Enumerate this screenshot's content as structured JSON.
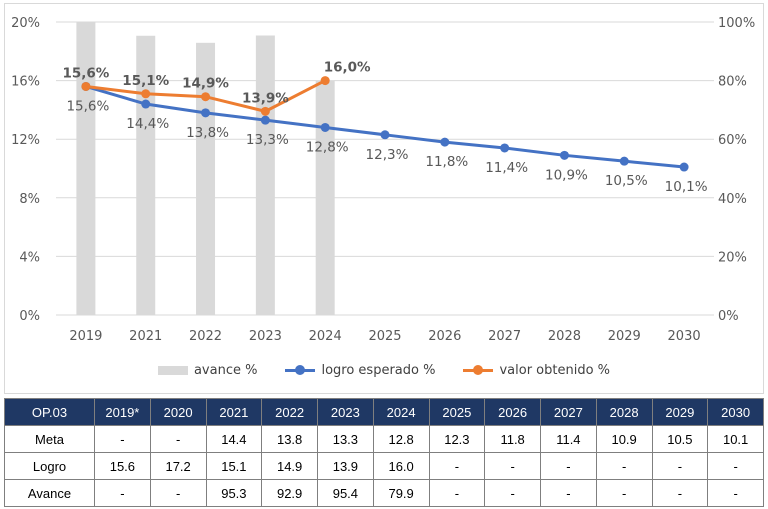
{
  "colors": {
    "bar": "#d9d9d9",
    "expected": "#4472c4",
    "obtained": "#ed7d31",
    "header_bg": "#1f3864",
    "grid": "#d9d9d9",
    "text": "#595959"
  },
  "chart_data": {
    "type": "bar+line",
    "categories": [
      "2019",
      "2021",
      "2022",
      "2023",
      "2024",
      "2025",
      "2026",
      "2027",
      "2028",
      "2029",
      "2030"
    ],
    "y_left": {
      "min": 0,
      "max": 20,
      "ticks": [
        "0%",
        "4%",
        "8%",
        "12%",
        "16%",
        "20%"
      ]
    },
    "y_right": {
      "min": 0,
      "max": 100,
      "ticks": [
        "0%",
        "20%",
        "40%",
        "60%",
        "80%",
        "100%"
      ]
    },
    "bars": {
      "name": "avance %",
      "axis": "right",
      "values": [
        100,
        95.3,
        92.9,
        95.4,
        79.9,
        null,
        null,
        null,
        null,
        null,
        null
      ]
    },
    "series": [
      {
        "name": "logro esperado %",
        "axis": "left",
        "values": [
          15.6,
          14.4,
          13.8,
          13.3,
          12.8,
          12.3,
          11.8,
          11.4,
          10.9,
          10.5,
          10.1
        ],
        "labels": [
          "15,6%",
          "14,4%",
          "13,8%",
          "13,3%",
          "12,8%",
          "12,3%",
          "11,8%",
          "11,4%",
          "10,9%",
          "10,5%",
          "10,1%"
        ]
      },
      {
        "name": "valor obtenido %",
        "axis": "left",
        "values": [
          15.6,
          15.1,
          14.9,
          13.9,
          16.0,
          null,
          null,
          null,
          null,
          null,
          null
        ],
        "labels": [
          "15,6%",
          "15,1%",
          "14,9%",
          "13,9%",
          "16,0%",
          "",
          "",
          "",
          "",
          "",
          ""
        ]
      }
    ]
  },
  "legend": [
    {
      "label": "avance %",
      "kind": "bar"
    },
    {
      "label": "logro esperado %",
      "kind": "expected"
    },
    {
      "label": "valor obtenido %",
      "kind": "obtained"
    }
  ],
  "table": {
    "headers": [
      "OP.03",
      "2019*",
      "2020",
      "2021",
      "2022",
      "2023",
      "2024",
      "2025",
      "2026",
      "2027",
      "2028",
      "2029",
      "2030"
    ],
    "rows": [
      [
        "Meta",
        "-",
        "-",
        "14.4",
        "13.8",
        "13.3",
        "12.8",
        "12.3",
        "11.8",
        "11.4",
        "10.9",
        "10.5",
        "10.1"
      ],
      [
        "Logro",
        "15.6",
        "17.2",
        "15.1",
        "14.9",
        "13.9",
        "16.0",
        "-",
        "-",
        "-",
        "-",
        "-",
        "-"
      ],
      [
        "Avance",
        "-",
        "-",
        "95.3",
        "92.9",
        "95.4",
        "79.9",
        "-",
        "-",
        "-",
        "-",
        "-",
        "-"
      ]
    ]
  }
}
